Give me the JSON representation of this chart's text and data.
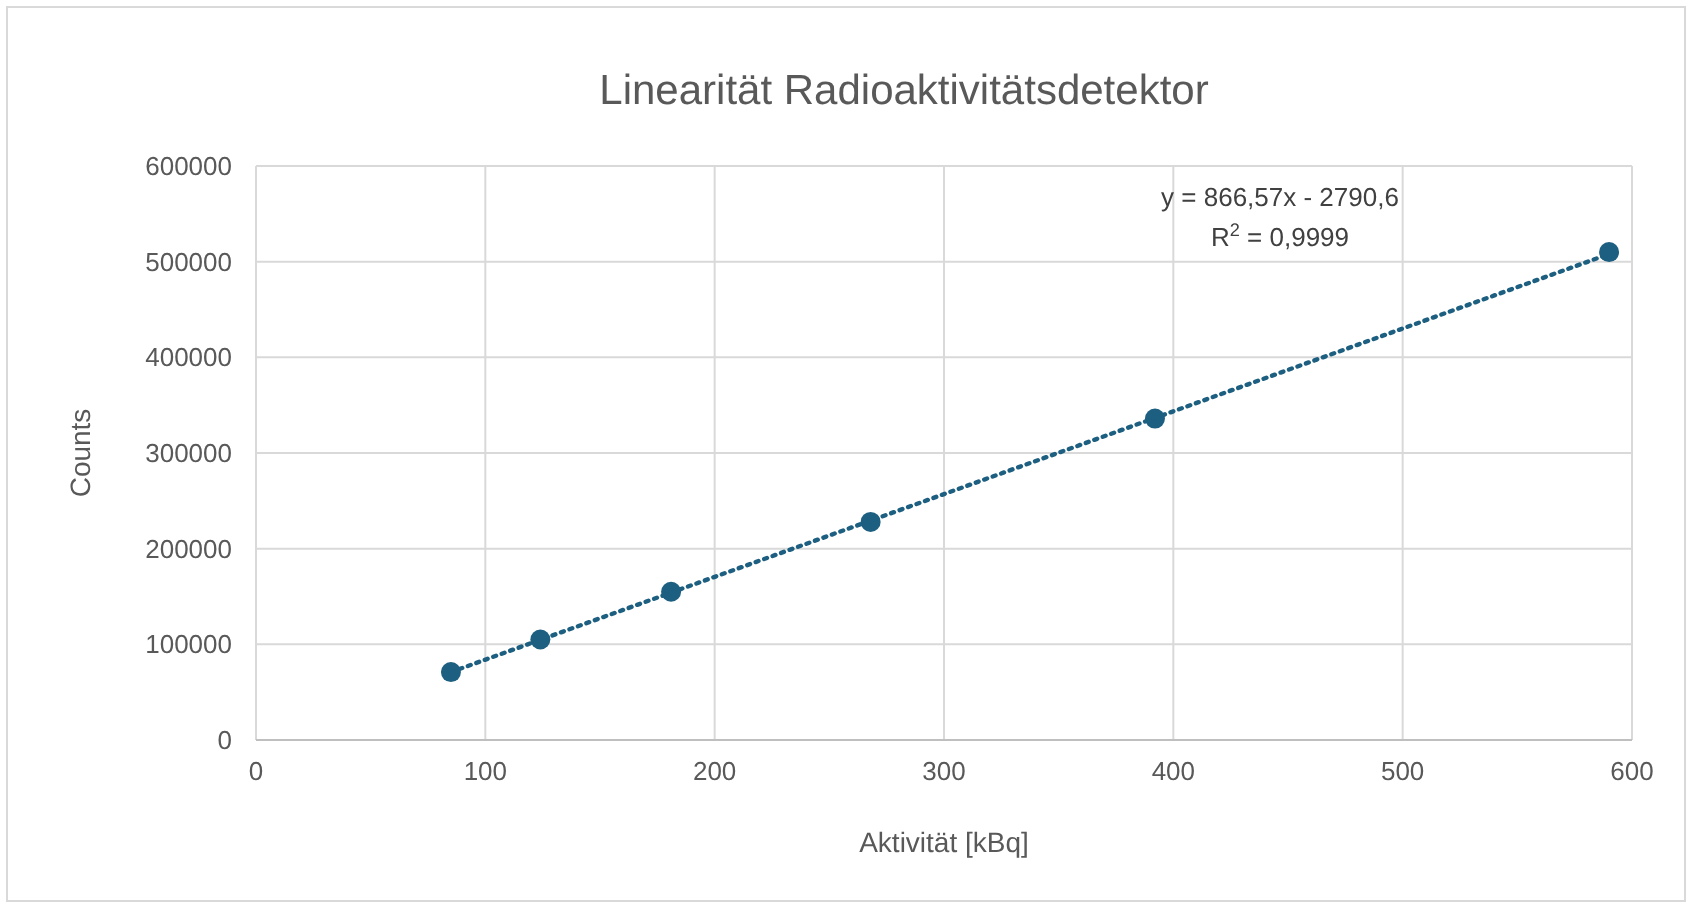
{
  "chart_data": {
    "type": "scatter",
    "title": "Linearität Radioaktivitätsdetektor",
    "xlabel": "Aktivität [kBq]",
    "ylabel": "Counts",
    "annotations": [
      "y = 866,57x - 2790,6",
      "R$^{2}$ = 0,9999"
    ],
    "x": [
      85,
      124,
      181,
      268,
      392,
      590
    ],
    "series": [
      {
        "color": "#1d5f80",
        "marker": "circle",
        "values": [
          71000,
          105000,
          155000,
          228000,
          336000,
          510000
        ]
      },
      {
        "type": "line",
        "color": "#1d5f80",
        "marker": "none",
        "line_style": "dotted",
        "x": [
          85,
          590
        ],
        "values": [
          71000,
          508000
        ]
      }
    ],
    "xlim": [
      0,
      600
    ],
    "xticks": [
      0,
      100,
      200,
      300,
      400,
      500,
      600
    ],
    "ylim": [
      0,
      600000
    ],
    "yticks": [
      0,
      100000,
      200000,
      300000,
      400000,
      500000,
      600000
    ],
    "grid": true
  }
}
